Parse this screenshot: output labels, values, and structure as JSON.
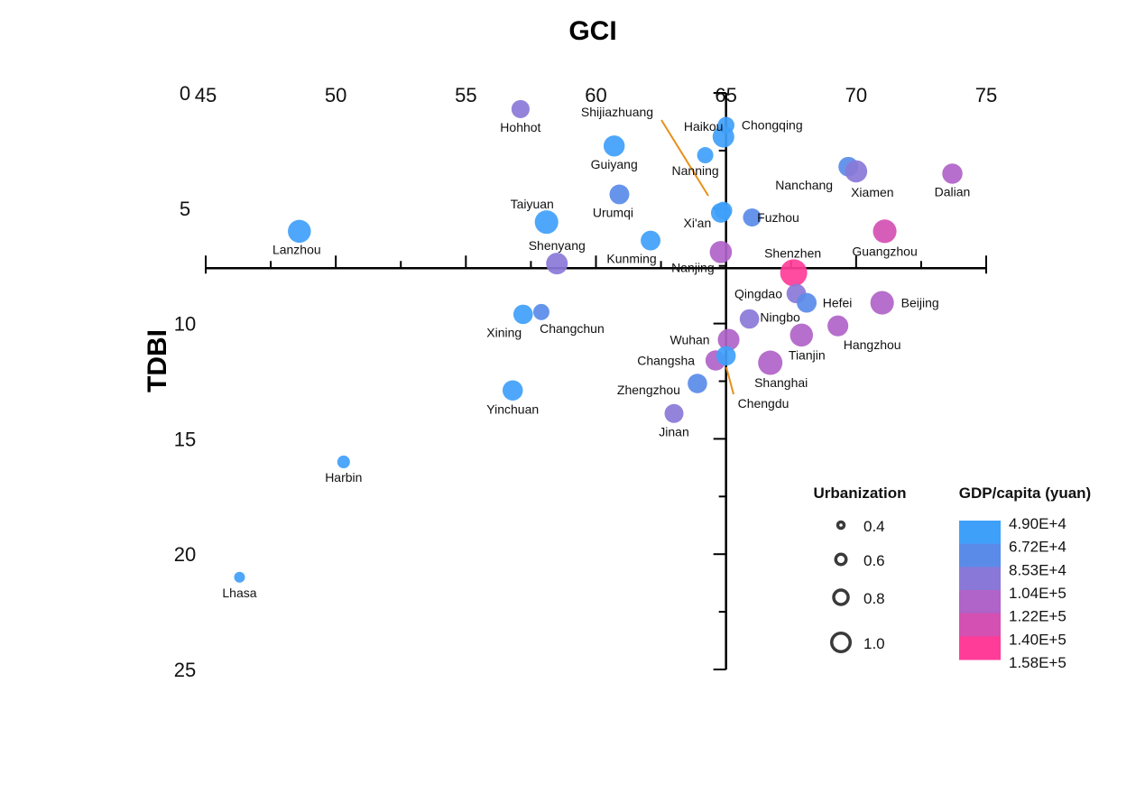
{
  "chart_data": {
    "type": "scatter",
    "title": "",
    "xlabel": "GCI",
    "ylabel": "TDBI",
    "xlim": [
      45,
      75
    ],
    "ylim": [
      0,
      25
    ],
    "y_inverted": true,
    "x_axis_position": "top",
    "axes_cross": {
      "x": 65,
      "y": 7.6
    },
    "x_ticks": [
      "45",
      "50",
      "55",
      "60",
      "65",
      "70",
      "75"
    ],
    "y_ticks": [
      "0",
      "5",
      "10",
      "15",
      "20",
      "25"
    ],
    "grid": false,
    "size_legend": {
      "title": "Urbanization",
      "items": [
        "0.4",
        "0.6",
        "0.8",
        "1.0"
      ]
    },
    "color_legend": {
      "title": "GDP/capita (yuan)",
      "labels": [
        "4.90E+4",
        "6.72E+4",
        "8.53E+4",
        "1.04E+5",
        "1.22E+5",
        "1.40E+5",
        "1.58E+5"
      ],
      "colors": [
        "#3fa0fa",
        "#5a8be9",
        "#8a78d8",
        "#b063c8",
        "#d450b2",
        "#ff3c98"
      ]
    },
    "label_line_color": "#e8901a",
    "points": [
      {
        "city": "Hohhot",
        "gci": 57.1,
        "tdbi": 0.7,
        "urbanization": 0.67,
        "gdp_band": 2
      },
      {
        "city": "Guiyang",
        "gci": 60.7,
        "tdbi": 2.3,
        "urbanization": 0.78,
        "gdp_band": 0
      },
      {
        "city": "Urumqi",
        "gci": 60.9,
        "tdbi": 4.4,
        "urbanization": 0.73,
        "gdp_band": 1
      },
      {
        "city": "Taiyuan",
        "gci": 58.1,
        "tdbi": 5.6,
        "urbanization": 0.87,
        "gdp_band": 0
      },
      {
        "city": "Lanzhou",
        "gci": 48.6,
        "tdbi": 6.0,
        "urbanization": 0.85,
        "gdp_band": 0
      },
      {
        "city": "Shenyang",
        "gci": 58.5,
        "tdbi": 7.4,
        "urbanization": 0.8,
        "gdp_band": 2
      },
      {
        "city": "Kunming",
        "gci": 62.1,
        "tdbi": 6.4,
        "urbanization": 0.73,
        "gdp_band": 0
      },
      {
        "city": "Shijiazhuang",
        "gci": 64.9,
        "tdbi": 5.1,
        "urbanization": 0.65,
        "gdp_band": 0
      },
      {
        "city": "Xi'an",
        "gci": 64.8,
        "tdbi": 5.2,
        "urbanization": 0.73,
        "gdp_band": 0
      },
      {
        "city": "Haikou",
        "gci": 65.0,
        "tdbi": 1.4,
        "urbanization": 0.62,
        "gdp_band": 0
      },
      {
        "city": "Chongqing",
        "gci": 64.9,
        "tdbi": 1.9,
        "urbanization": 0.8,
        "gdp_band": 0
      },
      {
        "city": "Nanning",
        "gci": 64.2,
        "tdbi": 2.7,
        "urbanization": 0.6,
        "gdp_band": 0
      },
      {
        "city": "Nanjing",
        "gci": 64.8,
        "tdbi": 6.9,
        "urbanization": 0.82,
        "gdp_band": 3
      },
      {
        "city": "Fuzhou",
        "gci": 66.0,
        "tdbi": 5.4,
        "urbanization": 0.67,
        "gdp_band": 1
      },
      {
        "city": "Nanchang",
        "gci": 69.7,
        "tdbi": 3.2,
        "urbanization": 0.73,
        "gdp_band": 1
      },
      {
        "city": "Xiamen",
        "gci": 70.0,
        "tdbi": 3.4,
        "urbanization": 0.82,
        "gdp_band": 2
      },
      {
        "city": "Dalian",
        "gci": 73.7,
        "tdbi": 3.5,
        "urbanization": 0.75,
        "gdp_band": 3
      },
      {
        "city": "Guangzhou",
        "gci": 71.1,
        "tdbi": 6.0,
        "urbanization": 0.87,
        "gdp_band": 4
      },
      {
        "city": "Shenzhen",
        "gci": 67.6,
        "tdbi": 7.8,
        "urbanization": 1.0,
        "gdp_band": 5
      },
      {
        "city": "Qingdao",
        "gci": 67.7,
        "tdbi": 8.7,
        "urbanization": 0.72,
        "gdp_band": 2
      },
      {
        "city": "Hefei",
        "gci": 68.1,
        "tdbi": 9.1,
        "urbanization": 0.73,
        "gdp_band": 1
      },
      {
        "city": "Beijing",
        "gci": 71.0,
        "tdbi": 9.1,
        "urbanization": 0.87,
        "gdp_band": 3
      },
      {
        "city": "Ningbo",
        "gci": 65.9,
        "tdbi": 9.8,
        "urbanization": 0.72,
        "gdp_band": 2
      },
      {
        "city": "Hangzhou",
        "gci": 69.3,
        "tdbi": 10.1,
        "urbanization": 0.77,
        "gdp_band": 3
      },
      {
        "city": "Tianjin",
        "gci": 67.9,
        "tdbi": 10.5,
        "urbanization": 0.85,
        "gdp_band": 3
      },
      {
        "city": "Wuhan",
        "gci": 65.1,
        "tdbi": 10.7,
        "urbanization": 0.8,
        "gdp_band": 3
      },
      {
        "city": "Changsha",
        "gci": 64.6,
        "tdbi": 11.6,
        "urbanization": 0.75,
        "gdp_band": 3
      },
      {
        "city": "Chengdu",
        "gci": 65.0,
        "tdbi": 11.4,
        "urbanization": 0.72,
        "gdp_band": 0
      },
      {
        "city": "Shanghai",
        "gci": 66.7,
        "tdbi": 11.7,
        "urbanization": 0.9,
        "gdp_band": 3
      },
      {
        "city": "Zhengzhou",
        "gci": 63.9,
        "tdbi": 12.6,
        "urbanization": 0.72,
        "gdp_band": 1
      },
      {
        "city": "Jinan",
        "gci": 63.0,
        "tdbi": 13.9,
        "urbanization": 0.7,
        "gdp_band": 2
      },
      {
        "city": "Xining",
        "gci": 57.2,
        "tdbi": 9.6,
        "urbanization": 0.72,
        "gdp_band": 0
      },
      {
        "city": "Changchun",
        "gci": 57.9,
        "tdbi": 9.5,
        "urbanization": 0.6,
        "gdp_band": 1
      },
      {
        "city": "Yinchuan",
        "gci": 56.8,
        "tdbi": 12.9,
        "urbanization": 0.75,
        "gdp_band": 0
      },
      {
        "city": "Harbin",
        "gci": 50.3,
        "tdbi": 16.0,
        "urbanization": 0.47,
        "gdp_band": 0
      },
      {
        "city": "Lhasa",
        "gci": 46.3,
        "tdbi": 21.0,
        "urbanization": 0.4,
        "gdp_band": 0
      }
    ]
  }
}
